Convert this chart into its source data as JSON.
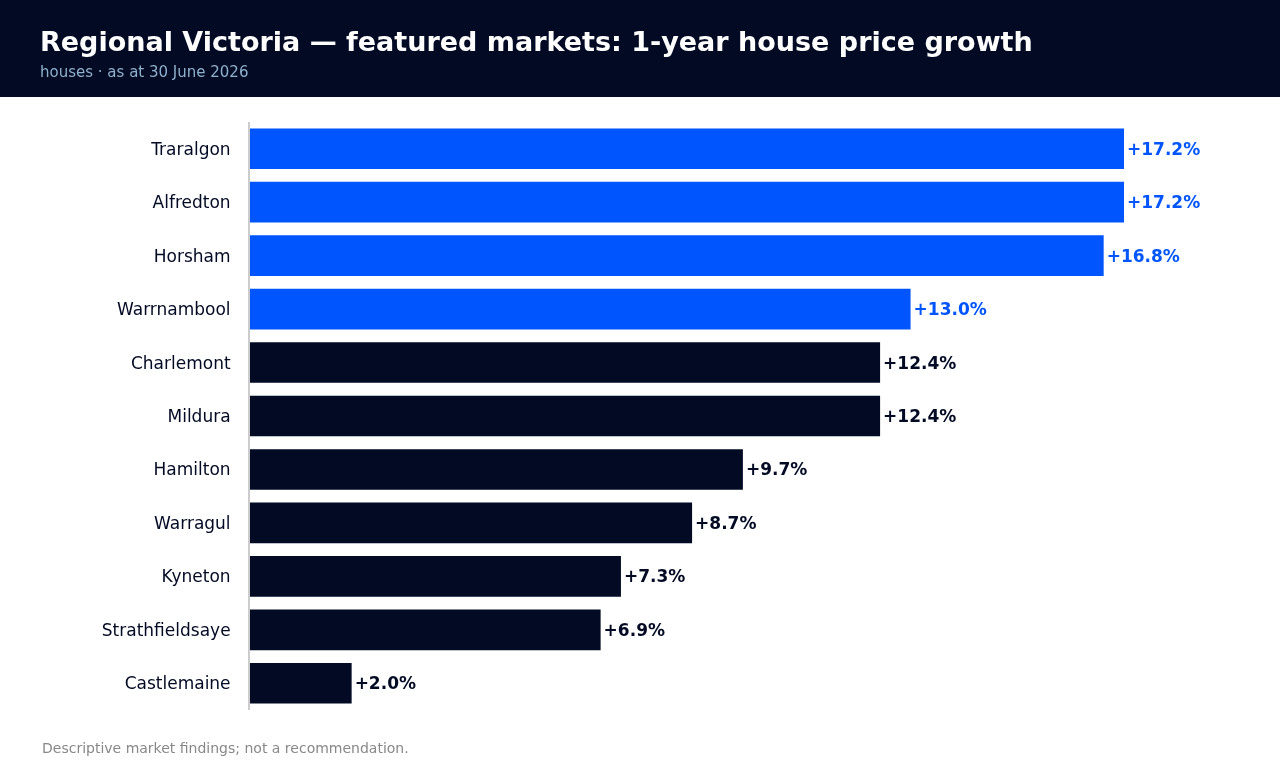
{
  "chart_data": {
    "type": "bar",
    "orientation": "horizontal",
    "title": "Regional Victoria — featured markets: 1-year house price growth",
    "subtitle": "houses · as at 30 June 2026",
    "categories": [
      "Traralgon",
      "Alfredton",
      "Horsham",
      "Warrnambool",
      "Charlemont",
      "Mildura",
      "Hamilton",
      "Warragul",
      "Kyneton",
      "Strathfieldsaye",
      "Castlemaine"
    ],
    "values": [
      17.2,
      17.2,
      16.8,
      13.0,
      12.4,
      12.4,
      9.7,
      8.7,
      7.3,
      6.9,
      2.0
    ],
    "value_labels": [
      "+17.2%",
      "+17.2%",
      "+16.8%",
      "+13.0%",
      "+12.4%",
      "+12.4%",
      "+9.7%",
      "+8.7%",
      "+7.3%",
      "+6.9%",
      "+2.0%"
    ],
    "colors": [
      "#0055ff",
      "#0055ff",
      "#0055ff",
      "#0055ff",
      "#020a24",
      "#020a24",
      "#020a24",
      "#020a24",
      "#020a24",
      "#020a24",
      "#020a24"
    ],
    "tick_labels": "y",
    "annotations": [
      "Descriptive market findings; not a recommendation."
    ]
  }
}
